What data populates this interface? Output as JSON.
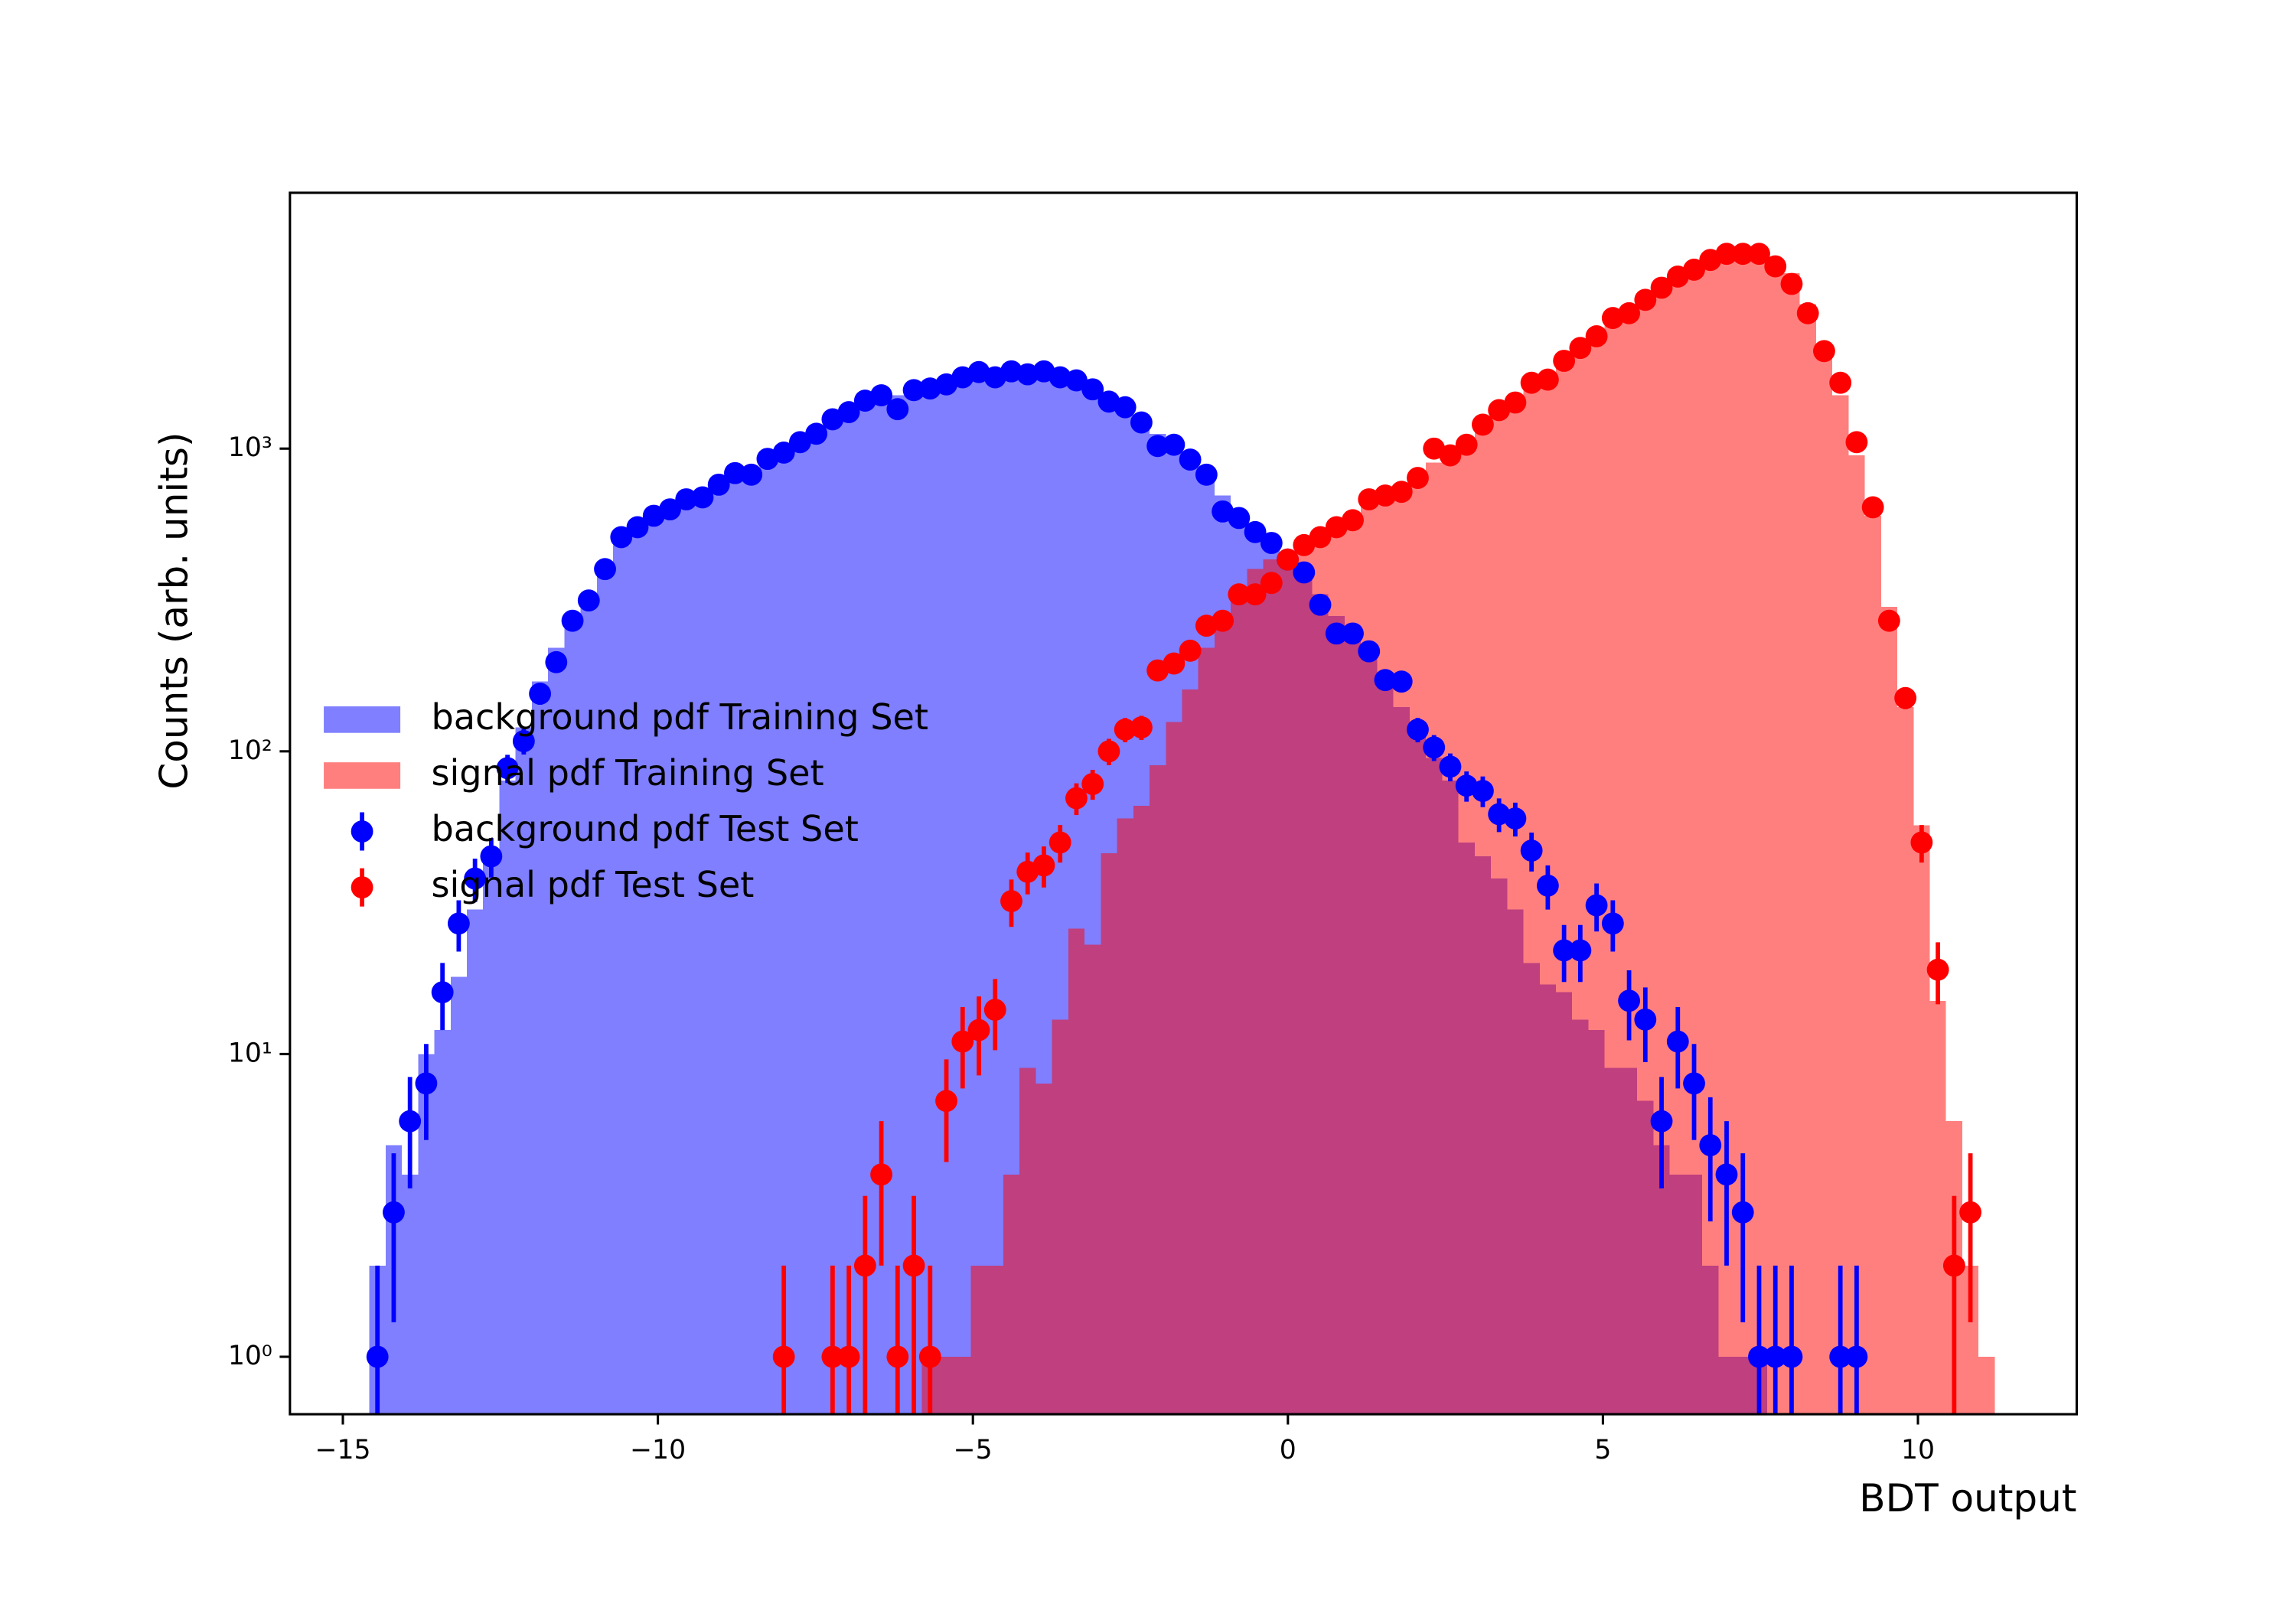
{
  "chart_data": {
    "type": "histogram",
    "xlabel": "BDT output",
    "ylabel": "Counts (arb. units)",
    "xlim": [
      -15.84,
      12.52
    ],
    "ylim": [
      0.646,
      7000
    ],
    "ylog": true,
    "xticks": [
      {
        "value": -15,
        "label": "−15"
      },
      {
        "value": -10,
        "label": "−10"
      },
      {
        "value": -5,
        "label": "−5"
      },
      0,
      5,
      10
    ],
    "yticks": [
      {
        "value": 1,
        "label": "10⁰"
      },
      {
        "value": 10,
        "label": "10¹"
      },
      {
        "value": 100,
        "label": "10²"
      },
      {
        "value": 1000,
        "label": "10³"
      }
    ],
    "legend": "center left",
    "bins": [
      -14.58,
      -14.322,
      -14.064,
      -13.806,
      -13.548,
      -13.29,
      -13.032,
      -12.774,
      -12.516,
      -12.258,
      -12.0,
      -11.742,
      -11.484,
      -11.226,
      -10.968,
      -10.71,
      -10.452,
      -10.194,
      -9.936,
      -9.678,
      -9.42,
      -9.162,
      -8.904,
      -8.646,
      -8.388,
      -8.13,
      -7.872,
      -7.614,
      -7.356,
      -7.098,
      -6.84,
      -6.582,
      -6.324,
      -6.066,
      -5.808,
      -5.55,
      -5.292,
      -5.034,
      -4.776,
      -4.518,
      -4.26,
      -4.002,
      -3.744,
      -3.486,
      -3.228,
      -2.97,
      -2.712,
      -2.454,
      -2.196,
      -1.938,
      -1.68,
      -1.422,
      -1.164,
      -0.906,
      -0.648,
      -0.39,
      -0.132,
      0.126,
      0.384,
      0.642,
      0.9,
      1.158,
      1.416,
      1.674,
      1.932,
      2.19,
      2.448,
      2.706,
      2.964,
      3.222,
      3.48,
      3.738,
      3.996,
      4.254,
      4.512,
      4.77,
      5.028,
      5.286,
      5.544,
      5.802,
      6.06,
      6.318,
      6.576,
      6.834,
      7.092,
      7.35,
      7.608,
      7.866,
      8.124,
      8.382,
      8.64,
      8.898,
      9.156,
      9.414,
      9.672,
      9.93,
      10.188,
      10.446,
      10.704,
      10.962,
      11.22
    ],
    "series": [
      {
        "name": "background pdf Training Set",
        "style": "bar",
        "color": "#0000ff",
        "alpha": 0.5,
        "values": [
          2,
          5,
          4,
          10,
          12,
          18,
          30,
          45,
          80,
          120,
          170,
          220,
          280,
          320,
          420,
          480,
          540,
          600,
          640,
          670,
          700,
          750,
          800,
          840,
          900,
          960,
          1040,
          1120,
          1220,
          1320,
          1420,
          1480,
          1500,
          1540,
          1580,
          1620,
          1680,
          1740,
          1760,
          1780,
          1760,
          1760,
          1720,
          1680,
          1600,
          1480,
          1380,
          1250,
          1120,
          1020,
          940,
          840,
          700,
          600,
          530,
          470,
          420,
          370,
          330,
          280,
          240,
          210,
          180,
          140,
          120,
          95,
          80,
          50,
          45,
          38,
          30,
          20,
          17,
          16,
          13,
          12,
          9,
          9,
          7,
          5,
          4,
          4,
          2,
          1,
          1,
          1,
          0,
          0,
          0,
          0,
          0,
          0,
          0,
          0,
          0,
          0,
          0,
          0,
          0,
          0
        ]
      },
      {
        "name": "signal pdf Training Set",
        "style": "bar",
        "color": "#ff0000",
        "alpha": 0.5,
        "values": [
          0,
          0,
          0,
          0,
          0,
          0,
          0,
          0,
          0,
          0,
          0,
          0,
          0,
          0,
          0,
          0,
          0,
          0,
          0,
          0,
          0,
          0,
          0,
          0,
          0,
          0,
          0,
          0,
          0,
          0,
          0,
          0,
          0,
          0,
          1,
          1,
          1,
          2,
          2,
          4,
          9,
          8,
          13,
          26,
          23,
          46,
          60,
          66,
          90,
          125,
          160,
          220,
          275,
          345,
          400,
          430,
          450,
          480,
          520,
          560,
          600,
          660,
          700,
          760,
          820,
          900,
          980,
          1080,
          1180,
          1300,
          1420,
          1560,
          1700,
          1900,
          2100,
          2350,
          2600,
          2850,
          3150,
          3450,
          3750,
          4000,
          4200,
          4350,
          4450,
          4400,
          4200,
          3800,
          3000,
          2200,
          1500,
          950,
          600,
          300,
          140,
          57,
          15,
          6,
          2,
          1
        ]
      },
      {
        "name": "background pdf Test Set",
        "style": "errorbar",
        "color": "#0000ff",
        "values": [
          1,
          3,
          6,
          8,
          16,
          27,
          38,
          45,
          88,
          108,
          155,
          197,
          270,
          315,
          400,
          510,
          550,
          600,
          630,
          680,
          690,
          760,
          830,
          820,
          925,
          970,
          1050,
          1120,
          1250,
          1320,
          1440,
          1500,
          1350,
          1560,
          1580,
          1630,
          1720,
          1790,
          1720,
          1800,
          1760,
          1800,
          1720,
          1680,
          1570,
          1430,
          1370,
          1220,
          1020,
          1030,
          920,
          820,
          620,
          590,
          530,
          488,
          430,
          390,
          305,
          245,
          245,
          214,
          172,
          170,
          118,
          103,
          89,
          77,
          74,
          62,
          60,
          47,
          36,
          22,
          22,
          31,
          27,
          15,
          13,
          6,
          11,
          8,
          5,
          4,
          3,
          1,
          1,
          1,
          null,
          null,
          1,
          1,
          null,
          null,
          null,
          null,
          null,
          null,
          null,
          null
        ],
        "errors": [
          1,
          1.7,
          2.4,
          2.8,
          4,
          5.2,
          6.2,
          6.7,
          9.4,
          10.4,
          12.4,
          14,
          16.4,
          17.7,
          20,
          22.6,
          23.5,
          24.5,
          25.1,
          26.1,
          26.3,
          27.6,
          28.8,
          28.6,
          30.4,
          31.1,
          32.4,
          33.5,
          35.4,
          36.3,
          37.9,
          38.7,
          36.7,
          39.5,
          39.7,
          40.4,
          41.5,
          42.3,
          41.5,
          42.4,
          42,
          42.4,
          41.5,
          41,
          39.6,
          37.8,
          37,
          34.9,
          31.9,
          32.1,
          30.3,
          28.6,
          24.9,
          24.3,
          23,
          22.1,
          20.7,
          19.7,
          17.5,
          15.7,
          15.7,
          14.6,
          13.1,
          13,
          10.9,
          10.1,
          9.4,
          8.8,
          8.6,
          7.9,
          7.7,
          6.9,
          6,
          4.7,
          4.7,
          5.6,
          5.2,
          3.9,
          3.6,
          2.4,
          3.3,
          2.8,
          2.2,
          2,
          1.7,
          1,
          1,
          1,
          null,
          null,
          1,
          1,
          null,
          null,
          null,
          null,
          null,
          null,
          null,
          null
        ]
      },
      {
        "name": "signal pdf Test Set",
        "style": "errorbar",
        "color": "#ff0000",
        "values": [
          null,
          null,
          null,
          null,
          null,
          null,
          null,
          null,
          null,
          null,
          null,
          null,
          null,
          null,
          null,
          null,
          null,
          null,
          null,
          null,
          null,
          null,
          null,
          null,
          null,
          1,
          null,
          null,
          1,
          1,
          2,
          4,
          1,
          2,
          1,
          7,
          11,
          12,
          14,
          32,
          40,
          42,
          50,
          70,
          78,
          100,
          118,
          120,
          185,
          195,
          215,
          260,
          270,
          330,
          330,
          360,
          430,
          480,
          510,
          550,
          580,
          680,
          700,
          720,
          800,
          1000,
          950,
          1030,
          1200,
          1340,
          1420,
          1650,
          1690,
          1950,
          2150,
          2350,
          2700,
          2800,
          3100,
          3400,
          3700,
          3900,
          4200,
          4400,
          4400,
          4400,
          4000,
          3500,
          2800,
          2100,
          1650,
          1050,
          640,
          270,
          150,
          50,
          19,
          2,
          3,
          null
        ],
        "errors": [
          null,
          null,
          null,
          null,
          null,
          null,
          null,
          null,
          null,
          null,
          null,
          null,
          null,
          null,
          null,
          null,
          null,
          null,
          null,
          null,
          null,
          null,
          null,
          null,
          null,
          1,
          null,
          null,
          1,
          1,
          1.4,
          2,
          1,
          1.4,
          1,
          2.6,
          3.3,
          3.5,
          3.7,
          5.7,
          6.3,
          6.5,
          7.1,
          8.4,
          8.8,
          10,
          10.9,
          11,
          13.6,
          14,
          14.7,
          16.1,
          16.4,
          18.2,
          18.2,
          19,
          20.7,
          21.9,
          22.6,
          23.5,
          24.1,
          26.1,
          26.5,
          26.8,
          28.3,
          31.6,
          30.8,
          32.1,
          34.6,
          36.6,
          37.7,
          40.6,
          41.1,
          44.2,
          46.4,
          48.5,
          52,
          52.9,
          55.7,
          58.3,
          60.8,
          62.4,
          64.8,
          66.3,
          66.3,
          66.3,
          63.2,
          59.2,
          52.9,
          45.8,
          40.6,
          32.4,
          25.3,
          16.4,
          12.2,
          7.1,
          4.4,
          1.4,
          1.7,
          null
        ]
      }
    ]
  }
}
